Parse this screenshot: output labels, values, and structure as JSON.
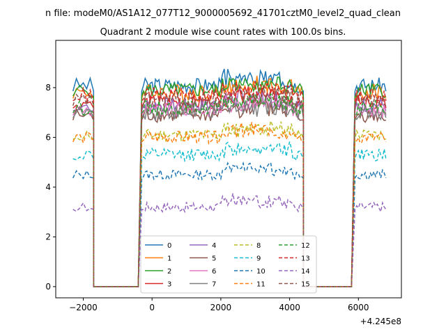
{
  "figure": {
    "suptitle": "n file: modeM0/AS1A12_077T12_9000005692_41701cztM0_level2_quad_clean",
    "title": "Quadrant 2 module wise count rates with 100.0s bins.",
    "offset_label": "+4.245e8"
  },
  "chart_data": {
    "type": "line",
    "title": "Quadrant 2 module wise count rates with 100.0s bins.",
    "xlabel": "",
    "ylabel": "",
    "x_offset": 424500000,
    "xlim": [
      -2800,
      7250
    ],
    "ylim": [
      -0.45,
      9.9
    ],
    "xticks": [
      -2000,
      0,
      2000,
      4000,
      6000
    ],
    "xtick_labels": [
      "−2000",
      "0",
      "2000",
      "4000",
      "6000"
    ],
    "yticks": [
      0,
      2,
      4,
      6,
      8
    ],
    "ytick_labels": [
      "0",
      "2",
      "4",
      "6",
      "8"
    ],
    "grid": false,
    "legend": {
      "placement": "lower-center",
      "columns": 4
    },
    "segments": [
      {
        "start": -2300,
        "end": -1700,
        "step": 100
      },
      {
        "start": -1700,
        "end": -400,
        "step": 100,
        "gap": true
      },
      {
        "start": -300,
        "end": 4400,
        "step": 50
      },
      {
        "start": 4400,
        "end": 5850,
        "step": 100,
        "gap": true
      },
      {
        "start": 5900,
        "end": 6800,
        "step": 50
      }
    ],
    "series": [
      {
        "name": "0",
        "level": 8.1,
        "noise": 0.3,
        "color": "#1f77b4",
        "dash": "solid"
      },
      {
        "name": "1",
        "level": 7.8,
        "noise": 0.35,
        "color": "#ff7f0e",
        "dash": "solid"
      },
      {
        "name": "2",
        "level": 7.9,
        "noise": 0.3,
        "color": "#2ca02c",
        "dash": "solid"
      },
      {
        "name": "3",
        "level": 7.4,
        "noise": 0.3,
        "color": "#d62728",
        "dash": "solid"
      },
      {
        "name": "4",
        "level": 7.3,
        "noise": 0.3,
        "color": "#9467bd",
        "dash": "solid"
      },
      {
        "name": "5",
        "level": 6.9,
        "noise": 0.3,
        "color": "#8c564b",
        "dash": "solid"
      },
      {
        "name": "6",
        "level": 7.1,
        "noise": 0.3,
        "color": "#e377c2",
        "dash": "solid"
      },
      {
        "name": "7",
        "level": 7.0,
        "noise": 0.3,
        "color": "#7f7f7f",
        "dash": "solid"
      },
      {
        "name": "8",
        "level": 6.1,
        "noise": 0.25,
        "color": "#bcbd22",
        "dash": "dashed"
      },
      {
        "name": "9",
        "level": 5.3,
        "noise": 0.25,
        "color": "#17becf",
        "dash": "dashed"
      },
      {
        "name": "10",
        "level": 4.5,
        "noise": 0.2,
        "color": "#1f77b4",
        "dash": "dashed"
      },
      {
        "name": "11",
        "level": 6.0,
        "noise": 0.25,
        "color": "#ff7f0e",
        "dash": "dashed"
      },
      {
        "name": "12",
        "level": 7.2,
        "noise": 0.3,
        "color": "#2ca02c",
        "dash": "dashed"
      },
      {
        "name": "13",
        "level": 7.7,
        "noise": 0.3,
        "color": "#d62728",
        "dash": "dashed"
      },
      {
        "name": "14",
        "level": 3.2,
        "noise": 0.2,
        "color": "#9467bd",
        "dash": "dashed"
      },
      {
        "name": "15",
        "level": 7.5,
        "noise": 0.3,
        "color": "#8c564b",
        "dash": "dashed"
      }
    ]
  }
}
